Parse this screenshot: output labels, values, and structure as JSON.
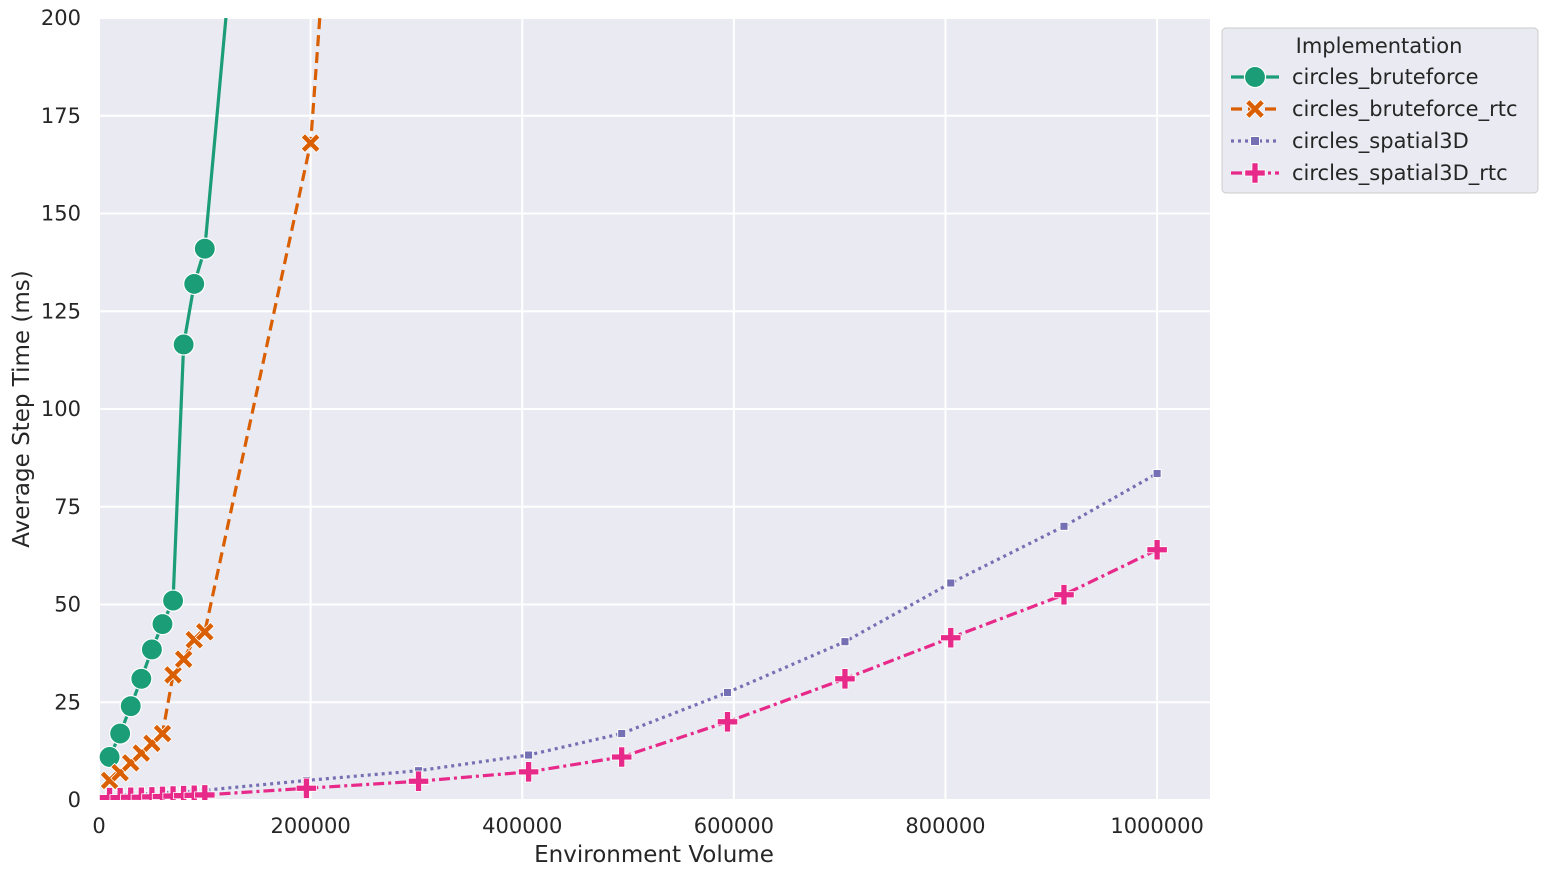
{
  "chart_data": {
    "type": "line",
    "title": "",
    "xlabel": "Environment Volume",
    "ylabel": "Average Step Time (ms)",
    "xlim": [
      0,
      1050000
    ],
    "ylim": [
      0,
      200
    ],
    "xticks": [
      0,
      200000,
      400000,
      600000,
      800000,
      1000000
    ],
    "xtick_labels": [
      "0",
      "200000",
      "400000",
      "600000",
      "800000",
      "1000000"
    ],
    "yticks": [
      0,
      25,
      50,
      75,
      100,
      125,
      150,
      175,
      200
    ],
    "ytick_labels": [
      "0",
      "25",
      "50",
      "75",
      "100",
      "125",
      "150",
      "175",
      "200"
    ],
    "grid": true,
    "background": "#eaeaf2",
    "legend": {
      "title": "Implementation",
      "placement": "outside-top-right"
    },
    "series": [
      {
        "name": "circles_bruteforce",
        "color": "#1b9e77",
        "linestyle": "solid",
        "marker": "circle",
        "x": [
          10000,
          20000,
          30000,
          40000,
          50000,
          60000,
          70000,
          80000,
          90000,
          100000,
          125000
        ],
        "y": [
          11,
          17,
          24,
          31,
          38.5,
          45,
          51,
          116.5,
          132,
          141,
          215
        ]
      },
      {
        "name": "circles_bruteforce_rtc",
        "color": "#d95f02",
        "linestyle": "dashed",
        "marker": "x",
        "x": [
          10000,
          20000,
          30000,
          40000,
          50000,
          60000,
          70000,
          80000,
          90000,
          100000,
          200000,
          210000
        ],
        "y": [
          5,
          7,
          9.5,
          12,
          14.5,
          17,
          32,
          36,
          41,
          43,
          168,
          205
        ]
      },
      {
        "name": "circles_spatial3D",
        "color": "#7570b3",
        "linestyle": "dotted",
        "marker": "square",
        "x": [
          10000,
          20000,
          30000,
          40000,
          50000,
          60000,
          70000,
          80000,
          90000,
          100000,
          196000,
          302000,
          406000,
          494000,
          594000,
          705000,
          805000,
          912000,
          1000000
        ],
        "y": [
          1.2,
          1.3,
          1.4,
          1.5,
          1.6,
          1.8,
          2.0,
          2.1,
          2.3,
          2.5,
          5,
          7.5,
          11.5,
          17,
          27.5,
          40.5,
          55.5,
          70,
          83.5
        ]
      },
      {
        "name": "circles_spatial3D_rtc",
        "color": "#e7298a",
        "linestyle": "dashdot",
        "marker": "plus",
        "x": [
          10000,
          20000,
          30000,
          40000,
          50000,
          60000,
          70000,
          80000,
          90000,
          100000,
          196000,
          302000,
          406000,
          494000,
          594000,
          705000,
          805000,
          912000,
          1000000
        ],
        "y": [
          0.6,
          0.6,
          0.7,
          0.7,
          0.8,
          0.9,
          1.0,
          1.1,
          1.2,
          1.3,
          3,
          4.8,
          7.2,
          11,
          20,
          31,
          41.5,
          52.5,
          64
        ]
      }
    ]
  }
}
